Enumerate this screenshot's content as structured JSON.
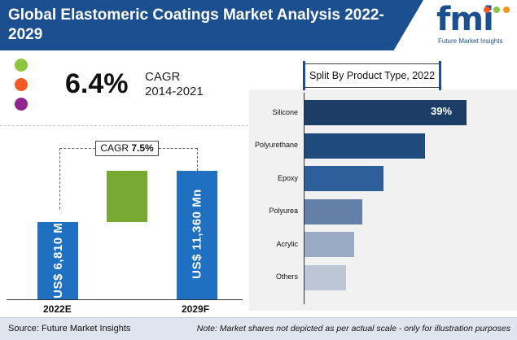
{
  "header": {
    "title": "Global Elastomeric Coatings Market Analysis 2022-2029"
  },
  "logo": {
    "text": "fmi",
    "subtitle": "Future Market Insights"
  },
  "headline": {
    "cagr_value": "6.4%",
    "cagr_label": "CAGR",
    "cagr_period": "2014-2021"
  },
  "legend_dots": [
    "#8dc63f",
    "#f15a24",
    "#93278f"
  ],
  "forecast": {
    "cagr_prefix": "CAGR",
    "cagr_value": "7.5%",
    "bars": [
      {
        "category": "2022E",
        "value": 6810,
        "label": "US$ 6,810 Mn",
        "color": "#1f70c1"
      },
      {
        "category": "2029F",
        "value": 11360,
        "label": "US$ 11,360 Mn",
        "color": "#1f70c1"
      }
    ],
    "increment_color": "#76a832"
  },
  "chart_data": [
    {
      "type": "bar",
      "categories": [
        "2022E",
        "2029F"
      ],
      "values": [
        6810,
        11360
      ],
      "ylabel": "",
      "annotations": [
        "CAGR 7.5%"
      ]
    },
    {
      "type": "bar",
      "orientation": "horizontal",
      "title": "Split By Product  Type, 2022",
      "categories": [
        "Silicone",
        "Polyurethane",
        "Epoxy",
        "Polyurea",
        "Acrylic",
        "Others"
      ],
      "values": [
        39,
        29,
        19,
        14,
        12,
        10
      ],
      "data_labels": [
        "39%",
        "",
        "",
        "",
        "",
        ""
      ],
      "colors": [
        "#1b3d66",
        "#1f4a7c",
        "#2e5f9a",
        "#6480a8",
        "#98aac4",
        "#bcc6d5"
      ]
    }
  ],
  "footer": {
    "source": "Source: Future Market Insights",
    "note": "Note: Market shares not depicted as per actual scale - only for illustration purposes"
  }
}
